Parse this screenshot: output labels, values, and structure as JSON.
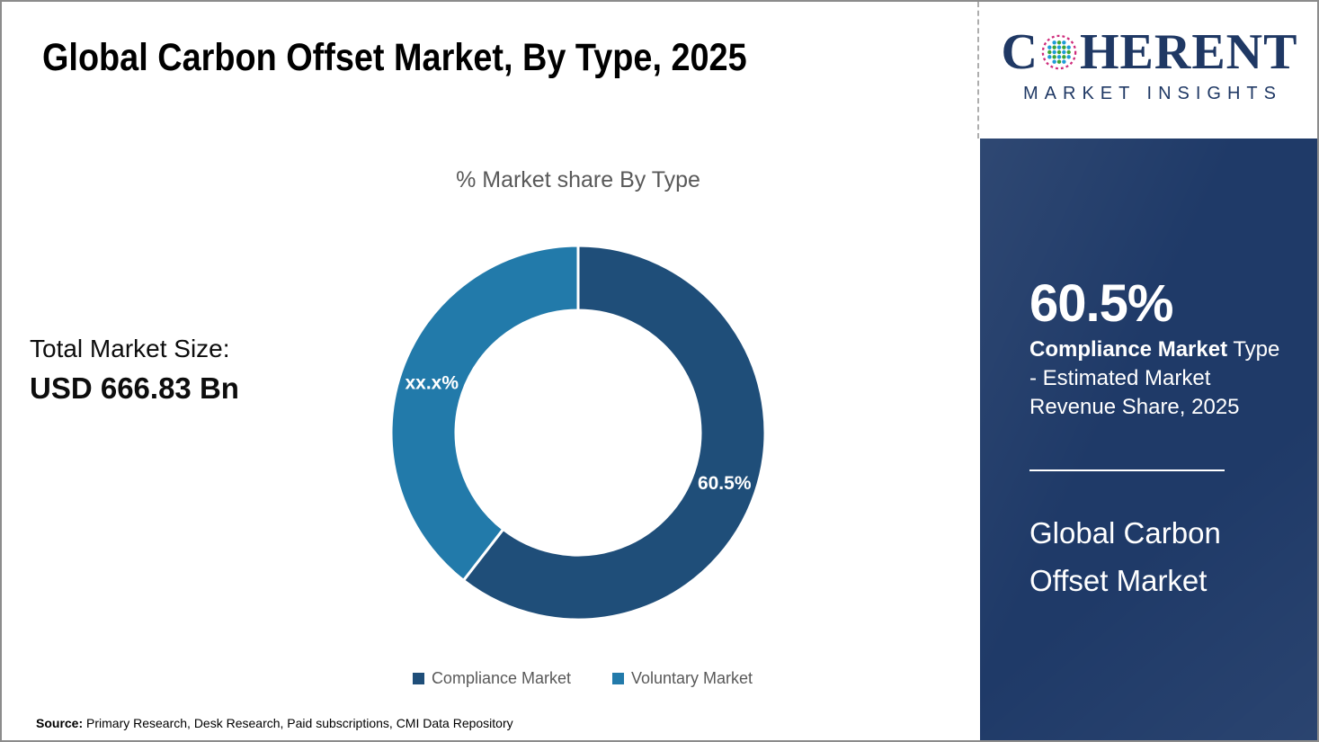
{
  "header": {
    "title": "Global Carbon Offset Market, By Type, 2025"
  },
  "logo": {
    "letter_c": "C",
    "letters_rest": "HERENT",
    "tagline": "MARKET INSIGHTS",
    "brand_color": "#1F3864",
    "globe_green": "#3EA437",
    "globe_blue": "#1E9CD8",
    "globe_pink": "#CE2B7B"
  },
  "chart_data": {
    "type": "pie",
    "subtype": "donut",
    "title": "% Market share By Type",
    "categories": [
      "Compliance Market",
      "Voluntary Market"
    ],
    "values": [
      60.5,
      39.5
    ],
    "slice_labels": [
      "60.5%",
      "xx.x%"
    ],
    "colors": [
      "#1F4E79",
      "#227AAA"
    ],
    "start_angle_deg": 0,
    "direction": "clockwise",
    "legend_position": "bottom",
    "inner_radius_ratio": 0.654,
    "slice_border_color": "#FFFFFF"
  },
  "market": {
    "label": "Total Market Size:",
    "value": "USD 666.83 Bn"
  },
  "source": {
    "label": "Source:",
    "text": " Primary Research, Desk Research, Paid subscriptions, CMI Data Repository"
  },
  "panel": {
    "bg_color": "#1F3A68",
    "stat_value": "60.5%",
    "stat_desc_bold": "Compliance Market",
    "stat_desc_rest": " Type - Estimated Market Revenue Share, 2025",
    "title": "Global Carbon Offset Market"
  }
}
